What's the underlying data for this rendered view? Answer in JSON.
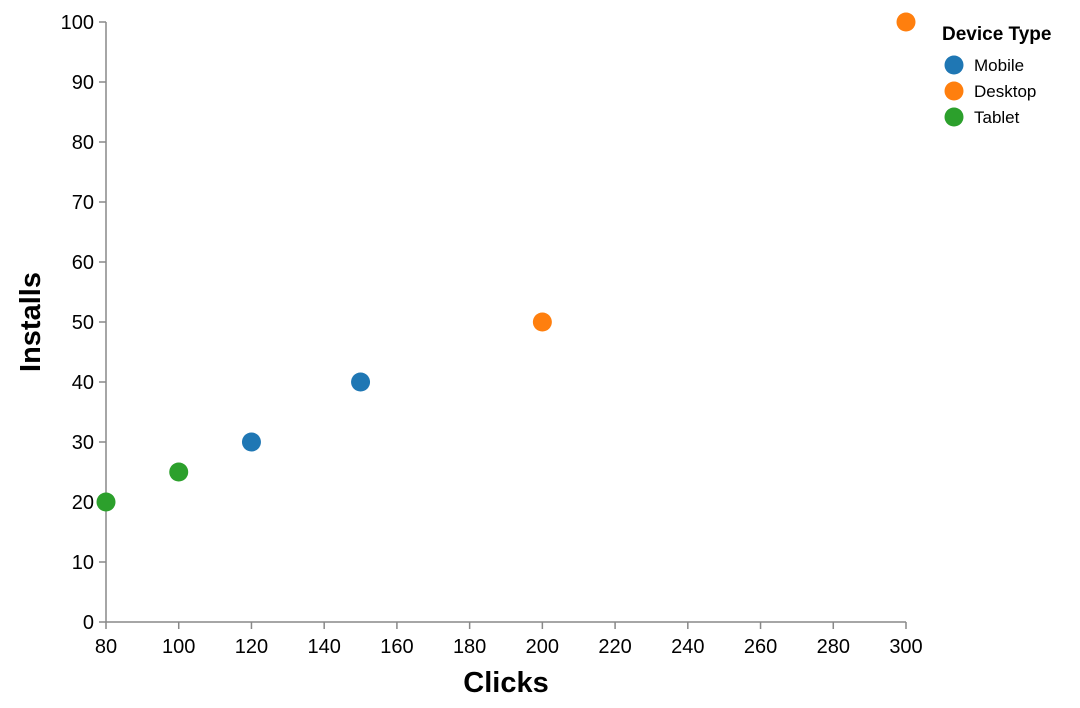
{
  "chart_data": {
    "type": "scatter",
    "xlabel": "Clicks",
    "ylabel": "Installs",
    "xlim": [
      80,
      300
    ],
    "ylim": [
      0,
      100
    ],
    "x_ticks": [
      "80",
      "100",
      "120",
      "140",
      "160",
      "180",
      "200",
      "220",
      "240",
      "260",
      "280",
      "300"
    ],
    "y_ticks": [
      "0",
      "10",
      "20",
      "30",
      "40",
      "50",
      "60",
      "70",
      "80",
      "90",
      "100"
    ],
    "grid": false,
    "legend": {
      "title": "Device Type",
      "placement": "top-right"
    },
    "series": [
      {
        "name": "Mobile",
        "color": "#1f77b4",
        "points": [
          {
            "x": 120,
            "y": 30
          },
          {
            "x": 150,
            "y": 40
          }
        ]
      },
      {
        "name": "Desktop",
        "color": "#ff7f0e",
        "points": [
          {
            "x": 200,
            "y": 50
          },
          {
            "x": 300,
            "y": 100
          }
        ]
      },
      {
        "name": "Tablet",
        "color": "#2ca02c",
        "points": [
          {
            "x": 80,
            "y": 20
          },
          {
            "x": 100,
            "y": 25
          }
        ]
      }
    ]
  }
}
